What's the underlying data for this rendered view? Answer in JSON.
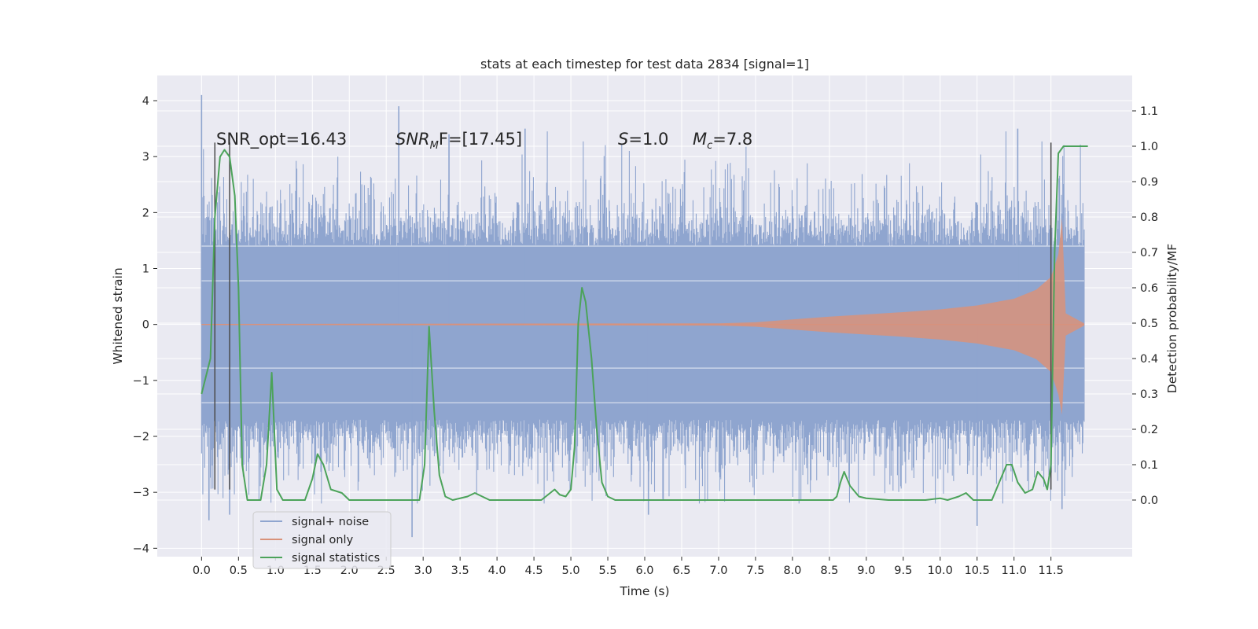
{
  "chart_data": {
    "type": "line",
    "title": "stats at each timestep for test data 2834 [signal=1]",
    "xlabel": "Time (s)",
    "ylabel": "Whitened strain",
    "ylabel_right": "Detection probability/MF",
    "xlim": [
      -0.6,
      12.6
    ],
    "ylim": [
      -4.15,
      4.45
    ],
    "ylim_right": [
      -0.16,
      1.2
    ],
    "x_ticks": [
      "0.0",
      "0.5",
      "1.0",
      "1.5",
      "2.0",
      "2.5",
      "3.0",
      "3.5",
      "4.0",
      "4.5",
      "5.0",
      "5.5",
      "6.0",
      "6.5",
      "7.0",
      "7.5",
      "8.0",
      "8.5",
      "9.0",
      "9.5",
      "10.0",
      "10.5",
      "11.0",
      "11.5"
    ],
    "y_ticks": [
      "4",
      "3",
      "2",
      "1",
      "0",
      "−1",
      "−2",
      "−3",
      "−4"
    ],
    "y_ticks_right": [
      "1.1",
      "1.0",
      "0.9",
      "0.8",
      "0.7",
      "0.6",
      "0.5",
      "0.4",
      "0.3",
      "0.2",
      "0.1",
      "0.0"
    ],
    "grid": true,
    "legend_position": "lower-left",
    "annotations": {
      "snr_opt": "SNR_opt=16.43",
      "snr_mf_prefix": "SNR",
      "snr_mf_sub": "M",
      "snr_mf_suffix": "F=[17.45]",
      "s_prefix": "S",
      "s_suffix": "=1.0",
      "mc_prefix": "M",
      "mc_sub": "c",
      "mc_suffix": "=7.8"
    },
    "vertical_markers_x": [
      0.18,
      0.38,
      11.5
    ],
    "series": [
      {
        "name": "signal+ noise",
        "axis": "left",
        "color": "#8fa5cf",
        "duration": 11.95,
        "core_band": [
          -1.7,
          1.4
        ],
        "typical_peaks": [
          -2.6,
          2.6
        ],
        "extreme_values": [
          {
            "x": 0.0,
            "y": 4.1
          },
          {
            "x": 0.1,
            "y": -3.5
          },
          {
            "x": 0.38,
            "y": -3.4
          },
          {
            "x": 2.67,
            "y": 3.9
          },
          {
            "x": 2.85,
            "y": -3.8
          },
          {
            "x": 3.35,
            "y": 3.4
          },
          {
            "x": 4.38,
            "y": 3.5
          },
          {
            "x": 6.05,
            "y": -3.4
          },
          {
            "x": 10.5,
            "y": -3.6
          },
          {
            "x": 11.05,
            "y": 3.5
          },
          {
            "x": 11.65,
            "y": -3.3
          }
        ]
      },
      {
        "name": "signal only",
        "axis": "left",
        "color": "#d9927a",
        "envelope": [
          [
            0.0,
            0.01
          ],
          [
            7.0,
            0.02
          ],
          [
            7.5,
            0.04
          ],
          [
            8.0,
            0.09
          ],
          [
            8.5,
            0.14
          ],
          [
            9.0,
            0.18
          ],
          [
            9.5,
            0.22
          ],
          [
            10.0,
            0.27
          ],
          [
            10.5,
            0.34
          ],
          [
            11.0,
            0.46
          ],
          [
            11.3,
            0.62
          ],
          [
            11.5,
            0.85
          ],
          [
            11.6,
            1.25
          ],
          [
            11.65,
            1.9
          ],
          [
            11.7,
            0.2
          ],
          [
            11.95,
            0.02
          ]
        ]
      },
      {
        "name": "signal statistics",
        "axis": "right",
        "color": "#4ca35a",
        "points": [
          [
            0.0,
            0.3
          ],
          [
            0.12,
            0.4
          ],
          [
            0.18,
            0.8
          ],
          [
            0.25,
            0.97
          ],
          [
            0.31,
            0.99
          ],
          [
            0.38,
            0.97
          ],
          [
            0.45,
            0.86
          ],
          [
            0.5,
            0.6
          ],
          [
            0.55,
            0.1
          ],
          [
            0.62,
            0.0
          ],
          [
            0.8,
            0.0
          ],
          [
            0.88,
            0.1
          ],
          [
            0.95,
            0.36
          ],
          [
            1.02,
            0.03
          ],
          [
            1.1,
            0.0
          ],
          [
            1.4,
            0.0
          ],
          [
            1.5,
            0.06
          ],
          [
            1.57,
            0.13
          ],
          [
            1.65,
            0.1
          ],
          [
            1.75,
            0.03
          ],
          [
            1.9,
            0.02
          ],
          [
            2.0,
            0.0
          ],
          [
            2.5,
            0.0
          ],
          [
            2.95,
            0.0
          ],
          [
            3.02,
            0.1
          ],
          [
            3.08,
            0.49
          ],
          [
            3.15,
            0.25
          ],
          [
            3.22,
            0.07
          ],
          [
            3.3,
            0.01
          ],
          [
            3.4,
            0.0
          ],
          [
            3.5,
            0.005
          ],
          [
            3.6,
            0.01
          ],
          [
            3.7,
            0.02
          ],
          [
            3.8,
            0.01
          ],
          [
            3.9,
            0.0
          ],
          [
            4.0,
            0.0
          ],
          [
            4.4,
            0.0
          ],
          [
            4.6,
            0.0
          ],
          [
            4.72,
            0.02
          ],
          [
            4.78,
            0.03
          ],
          [
            4.85,
            0.015
          ],
          [
            4.93,
            0.01
          ],
          [
            5.0,
            0.03
          ],
          [
            5.05,
            0.15
          ],
          [
            5.1,
            0.5
          ],
          [
            5.15,
            0.6
          ],
          [
            5.2,
            0.56
          ],
          [
            5.28,
            0.4
          ],
          [
            5.35,
            0.2
          ],
          [
            5.42,
            0.05
          ],
          [
            5.5,
            0.01
          ],
          [
            5.6,
            0.0
          ],
          [
            6.0,
            0.0
          ],
          [
            8.0,
            0.0
          ],
          [
            8.55,
            0.0
          ],
          [
            8.6,
            0.01
          ],
          [
            8.65,
            0.05
          ],
          [
            8.7,
            0.08
          ],
          [
            8.78,
            0.04
          ],
          [
            8.9,
            0.01
          ],
          [
            9.0,
            0.005
          ],
          [
            9.3,
            0.0
          ],
          [
            9.8,
            0.0
          ],
          [
            10.0,
            0.005
          ],
          [
            10.1,
            0.0
          ],
          [
            10.25,
            0.01
          ],
          [
            10.35,
            0.02
          ],
          [
            10.45,
            0.0
          ],
          [
            10.6,
            0.0
          ],
          [
            10.7,
            0.0
          ],
          [
            10.8,
            0.05
          ],
          [
            10.9,
            0.1
          ],
          [
            10.97,
            0.1
          ],
          [
            11.05,
            0.05
          ],
          [
            11.15,
            0.02
          ],
          [
            11.25,
            0.03
          ],
          [
            11.32,
            0.08
          ],
          [
            11.4,
            0.06
          ],
          [
            11.45,
            0.03
          ],
          [
            11.5,
            0.1
          ],
          [
            11.55,
            0.7
          ],
          [
            11.6,
            0.98
          ],
          [
            11.67,
            1.0
          ],
          [
            12.0,
            1.0
          ]
        ]
      }
    ]
  }
}
